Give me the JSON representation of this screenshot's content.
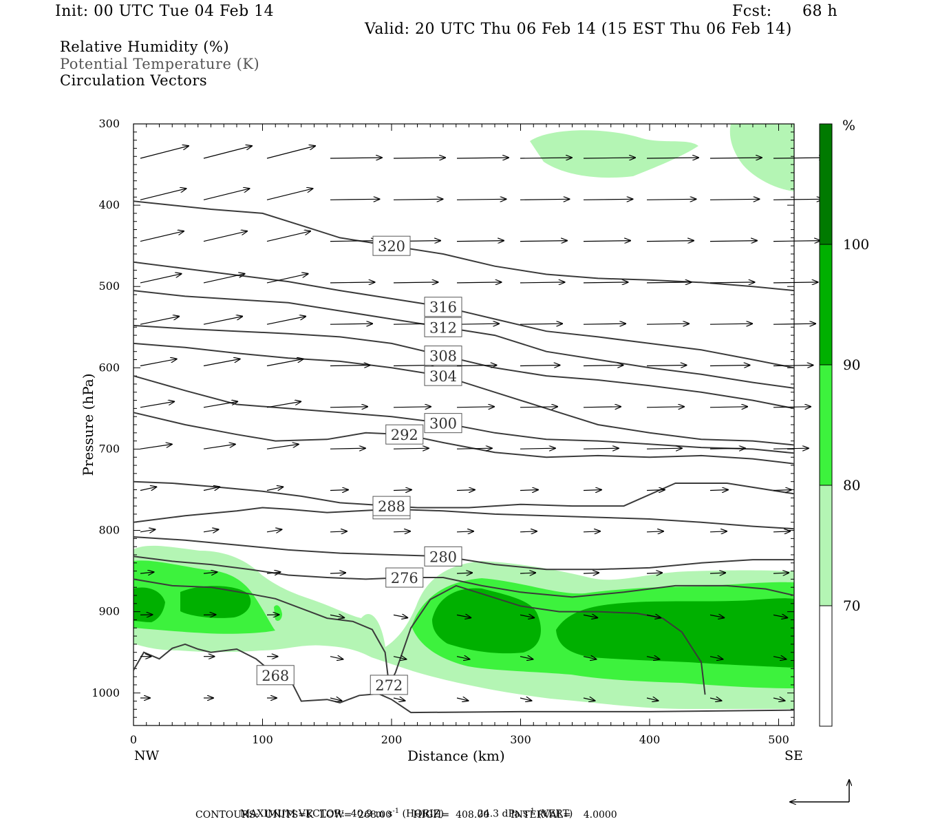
{
  "header": {
    "init": "Init: 00 UTC Tue 04 Feb 14",
    "fcst_label": "Fcst:",
    "fcst_value": "68 h",
    "valid": "Valid: 20 UTC Thu 06 Feb 14 (15 EST Thu 06 Feb 14)"
  },
  "fields": [
    {
      "label": "Relative Humidity (%)",
      "color": "#000000"
    },
    {
      "label": "Potential Temperature (K)",
      "color": "#555555"
    },
    {
      "label": "Circulation Vectors",
      "color": "#000000"
    }
  ],
  "chart_data": {
    "type": "cross-section",
    "xlabel": "Distance (km)",
    "ylabel": "Pressure (hPa)",
    "xlim": [
      0,
      512
    ],
    "ylim": [
      1040,
      300
    ],
    "y_scale": "linear, pressure decreasing upward",
    "x_ticks": [
      "0",
      "100",
      "200",
      "300",
      "400",
      "500"
    ],
    "x_tick_values": [
      0,
      100,
      200,
      300,
      400,
      500
    ],
    "y_ticks": [
      "300",
      "400",
      "500",
      "600",
      "700",
      "800",
      "900",
      "1000"
    ],
    "y_tick_values": [
      300,
      400,
      500,
      600,
      700,
      800,
      900,
      1000
    ],
    "x_end_labels": {
      "left": "NW",
      "right": "SE"
    },
    "colorbar": {
      "unit": "%",
      "levels": [
        70,
        80,
        90,
        100
      ],
      "level_labels": [
        "70",
        "80",
        "90",
        "100"
      ],
      "colors": [
        "#ffffff",
        "#b4f5b4",
        "#3df23d",
        "#00b000",
        "#007a00"
      ]
    },
    "theta_isolines_K": [
      {
        "label": "268",
        "pts": [
          [
            0,
            972
          ],
          [
            8,
            950
          ],
          [
            20,
            958
          ],
          [
            30,
            945
          ],
          [
            40,
            940
          ],
          [
            50,
            946
          ],
          [
            60,
            950
          ],
          [
            80,
            946
          ],
          [
            95,
            958
          ],
          [
            110,
            978
          ],
          [
            122,
            985
          ],
          [
            130,
            1010
          ],
          [
            150,
            1008
          ],
          [
            160,
            1012
          ],
          [
            175,
            1003
          ],
          [
            190,
            1001
          ],
          [
            200,
            1008
          ],
          [
            215,
            1024
          ],
          [
            300,
            1023
          ],
          [
            400,
            1023
          ],
          [
            512,
            1021
          ]
        ]
      },
      {
        "label": "272",
        "pts": [
          [
            0,
            860
          ],
          [
            30,
            868
          ],
          [
            60,
            870
          ],
          [
            90,
            878
          ],
          [
            110,
            884
          ],
          [
            130,
            896
          ],
          [
            150,
            908
          ],
          [
            170,
            912
          ],
          [
            185,
            922
          ],
          [
            195,
            950
          ],
          [
            198,
            990
          ],
          [
            203,
            975
          ],
          [
            215,
            920
          ],
          [
            230,
            885
          ],
          [
            250,
            868
          ],
          [
            270,
            878
          ],
          [
            300,
            893
          ],
          [
            330,
            900
          ],
          [
            360,
            900
          ],
          [
            390,
            902
          ],
          [
            410,
            908
          ],
          [
            425,
            925
          ],
          [
            440,
            962
          ],
          [
            443,
            1002
          ]
        ]
      },
      {
        "label": "276",
        "pts": [
          [
            0,
            832
          ],
          [
            30,
            838
          ],
          [
            60,
            842
          ],
          [
            90,
            848
          ],
          [
            120,
            855
          ],
          [
            150,
            858
          ],
          [
            180,
            860
          ],
          [
            210,
            858
          ],
          [
            240,
            858
          ],
          [
            270,
            868
          ],
          [
            300,
            876
          ],
          [
            340,
            882
          ],
          [
            380,
            876
          ],
          [
            420,
            868
          ],
          [
            460,
            868
          ],
          [
            490,
            872
          ],
          [
            512,
            880
          ]
        ]
      },
      {
        "label": "280",
        "pts": [
          [
            0,
            808
          ],
          [
            40,
            812
          ],
          [
            80,
            818
          ],
          [
            120,
            824
          ],
          [
            160,
            828
          ],
          [
            200,
            830
          ],
          [
            240,
            832
          ],
          [
            280,
            842
          ],
          [
            320,
            848
          ],
          [
            360,
            848
          ],
          [
            400,
            846
          ],
          [
            440,
            840
          ],
          [
            480,
            836
          ],
          [
            512,
            836
          ]
        ]
      },
      {
        "label": "284",
        "pts": [
          [
            0,
            790
          ],
          [
            40,
            782
          ],
          [
            80,
            776
          ],
          [
            100,
            772
          ],
          [
            120,
            774
          ],
          [
            150,
            778
          ],
          [
            200,
            774
          ],
          [
            240,
            776
          ],
          [
            280,
            780
          ],
          [
            320,
            782
          ],
          [
            360,
            784
          ],
          [
            400,
            786
          ],
          [
            440,
            790
          ],
          [
            480,
            795
          ],
          [
            512,
            798
          ]
        ]
      },
      {
        "label": "288",
        "pts": [
          [
            0,
            740
          ],
          [
            30,
            742
          ],
          [
            60,
            746
          ],
          [
            100,
            752
          ],
          [
            130,
            758
          ],
          [
            160,
            766
          ],
          [
            200,
            770
          ],
          [
            220,
            772
          ],
          [
            260,
            772
          ],
          [
            300,
            768
          ],
          [
            340,
            770
          ],
          [
            380,
            770
          ],
          [
            420,
            742
          ],
          [
            460,
            742
          ],
          [
            512,
            755
          ]
        ]
      },
      {
        "label": "292",
        "pts": [
          [
            0,
            655
          ],
          [
            40,
            670
          ],
          [
            80,
            682
          ],
          [
            110,
            690
          ],
          [
            150,
            688
          ],
          [
            180,
            680
          ],
          [
            210,
            682
          ],
          [
            240,
            692
          ],
          [
            280,
            704
          ],
          [
            320,
            710
          ],
          [
            360,
            708
          ],
          [
            400,
            710
          ],
          [
            440,
            708
          ],
          [
            480,
            712
          ],
          [
            512,
            718
          ]
        ]
      },
      {
        "label": "300",
        "pts": [
          [
            0,
            610
          ],
          [
            40,
            628
          ],
          [
            80,
            645
          ],
          [
            120,
            650
          ],
          [
            160,
            655
          ],
          [
            200,
            660
          ],
          [
            240,
            668
          ],
          [
            280,
            680
          ],
          [
            320,
            688
          ],
          [
            360,
            690
          ],
          [
            400,
            694
          ],
          [
            440,
            698
          ],
          [
            480,
            700
          ],
          [
            512,
            705
          ]
        ]
      },
      {
        "label": "304",
        "pts": [
          [
            0,
            570
          ],
          [
            40,
            575
          ],
          [
            80,
            582
          ],
          [
            120,
            588
          ],
          [
            160,
            592
          ],
          [
            200,
            600
          ],
          [
            240,
            610
          ],
          [
            280,
            630
          ],
          [
            320,
            650
          ],
          [
            360,
            670
          ],
          [
            400,
            680
          ],
          [
            440,
            688
          ],
          [
            480,
            690
          ],
          [
            512,
            695
          ]
        ]
      },
      {
        "label": "308",
        "pts": [
          [
            0,
            548
          ],
          [
            40,
            552
          ],
          [
            80,
            555
          ],
          [
            120,
            558
          ],
          [
            160,
            562
          ],
          [
            200,
            570
          ],
          [
            240,
            585
          ],
          [
            280,
            600
          ],
          [
            320,
            610
          ],
          [
            360,
            615
          ],
          [
            400,
            622
          ],
          [
            440,
            630
          ],
          [
            480,
            640
          ],
          [
            512,
            650
          ]
        ]
      },
      {
        "label": "312",
        "pts": [
          [
            0,
            505
          ],
          [
            40,
            512
          ],
          [
            80,
            516
          ],
          [
            120,
            520
          ],
          [
            160,
            530
          ],
          [
            200,
            540
          ],
          [
            240,
            550
          ],
          [
            280,
            560
          ],
          [
            320,
            580
          ],
          [
            360,
            590
          ],
          [
            400,
            600
          ],
          [
            440,
            608
          ],
          [
            480,
            618
          ],
          [
            512,
            625
          ]
        ]
      },
      {
        "label": "316",
        "pts": [
          [
            0,
            470
          ],
          [
            40,
            478
          ],
          [
            80,
            486
          ],
          [
            120,
            494
          ],
          [
            160,
            505
          ],
          [
            200,
            515
          ],
          [
            240,
            525
          ],
          [
            280,
            540
          ],
          [
            320,
            555
          ],
          [
            360,
            562
          ],
          [
            400,
            570
          ],
          [
            440,
            578
          ],
          [
            480,
            590
          ],
          [
            512,
            600
          ]
        ]
      },
      {
        "label": "320",
        "pts": [
          [
            0,
            395
          ],
          [
            30,
            400
          ],
          [
            60,
            405
          ],
          [
            100,
            410
          ],
          [
            130,
            425
          ],
          [
            160,
            440
          ],
          [
            200,
            450
          ],
          [
            240,
            460
          ],
          [
            280,
            475
          ],
          [
            320,
            485
          ],
          [
            360,
            490
          ],
          [
            400,
            492
          ],
          [
            440,
            495
          ],
          [
            480,
            500
          ],
          [
            512,
            505
          ]
        ]
      }
    ],
    "vector_max": {
      "horiz": "40.9 m s",
      "horiz_unit_suffix": "(HORIZ)",
      "vert": "24.3 dPa s",
      "vert_unit_suffix": "(VERT)"
    },
    "contours": {
      "units": "K",
      "low": "268.00",
      "high": "408.00",
      "interval": "4.0000"
    }
  },
  "footer": {
    "max_label": "MAXIMUM VECTOR:",
    "horiz": "40.9 m s",
    "horiz_suffix": "(HORIZ)",
    "vert": "24.3 dPa s",
    "vert_suffix": "(VERT)",
    "exponent": "-1",
    "contours_line": "CONTOURS:  UNITS=K  LOW=  268.00       HIGH=  408.00       INTERVAL=    4.0000"
  }
}
